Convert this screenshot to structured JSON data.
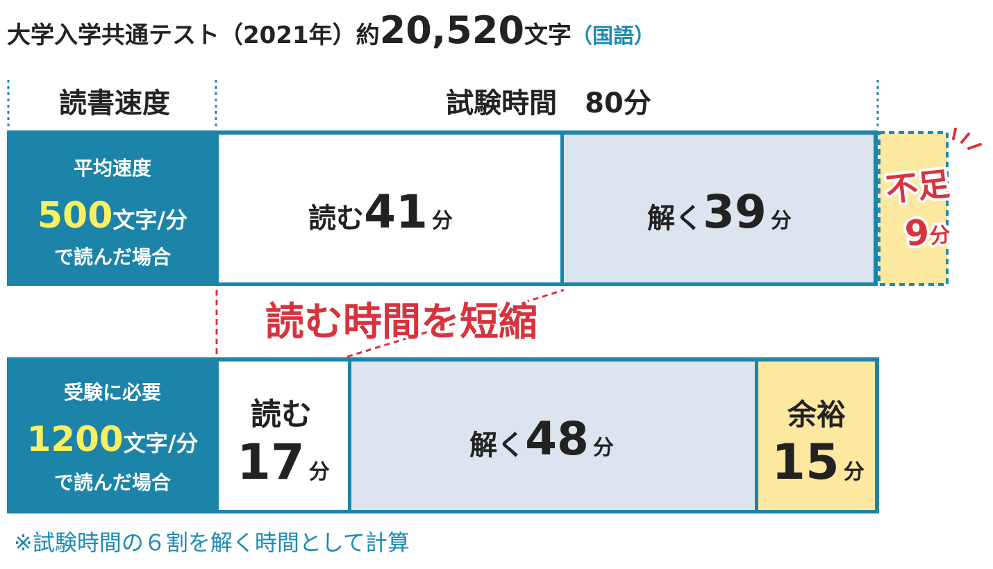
{
  "title": {
    "prefix": "大学入学共通テスト（2021年）約",
    "count": "20,520",
    "unit": "文字",
    "subject": "（国語）"
  },
  "header": {
    "speed": "読書速度",
    "time": "試験時間　80分"
  },
  "rows": [
    {
      "label": {
        "top": "平均速度",
        "speed": "500",
        "unit": "文字/分",
        "bottom": "で読んだ場合"
      },
      "segments": [
        {
          "verb": "読む",
          "minutes": "41",
          "unit": "分"
        },
        {
          "verb": "解く",
          "minutes": "39",
          "unit": "分"
        }
      ]
    },
    {
      "label": {
        "top": "受験に必要",
        "speed": "1200",
        "unit": "文字/分",
        "bottom": "で読んだ場合"
      },
      "segments": [
        {
          "verb": "読む",
          "minutes": "17",
          "unit": "分"
        },
        {
          "verb": "解く",
          "minutes": "48",
          "unit": "分"
        },
        {
          "verb": "余裕",
          "minutes": "15",
          "unit": "分"
        }
      ]
    }
  ],
  "shortage": {
    "label": "不足",
    "minutes": "9",
    "unit": "分"
  },
  "callout": "読む時間を短縮",
  "footnote": "※試験時間の６割を解く時間として計算"
}
